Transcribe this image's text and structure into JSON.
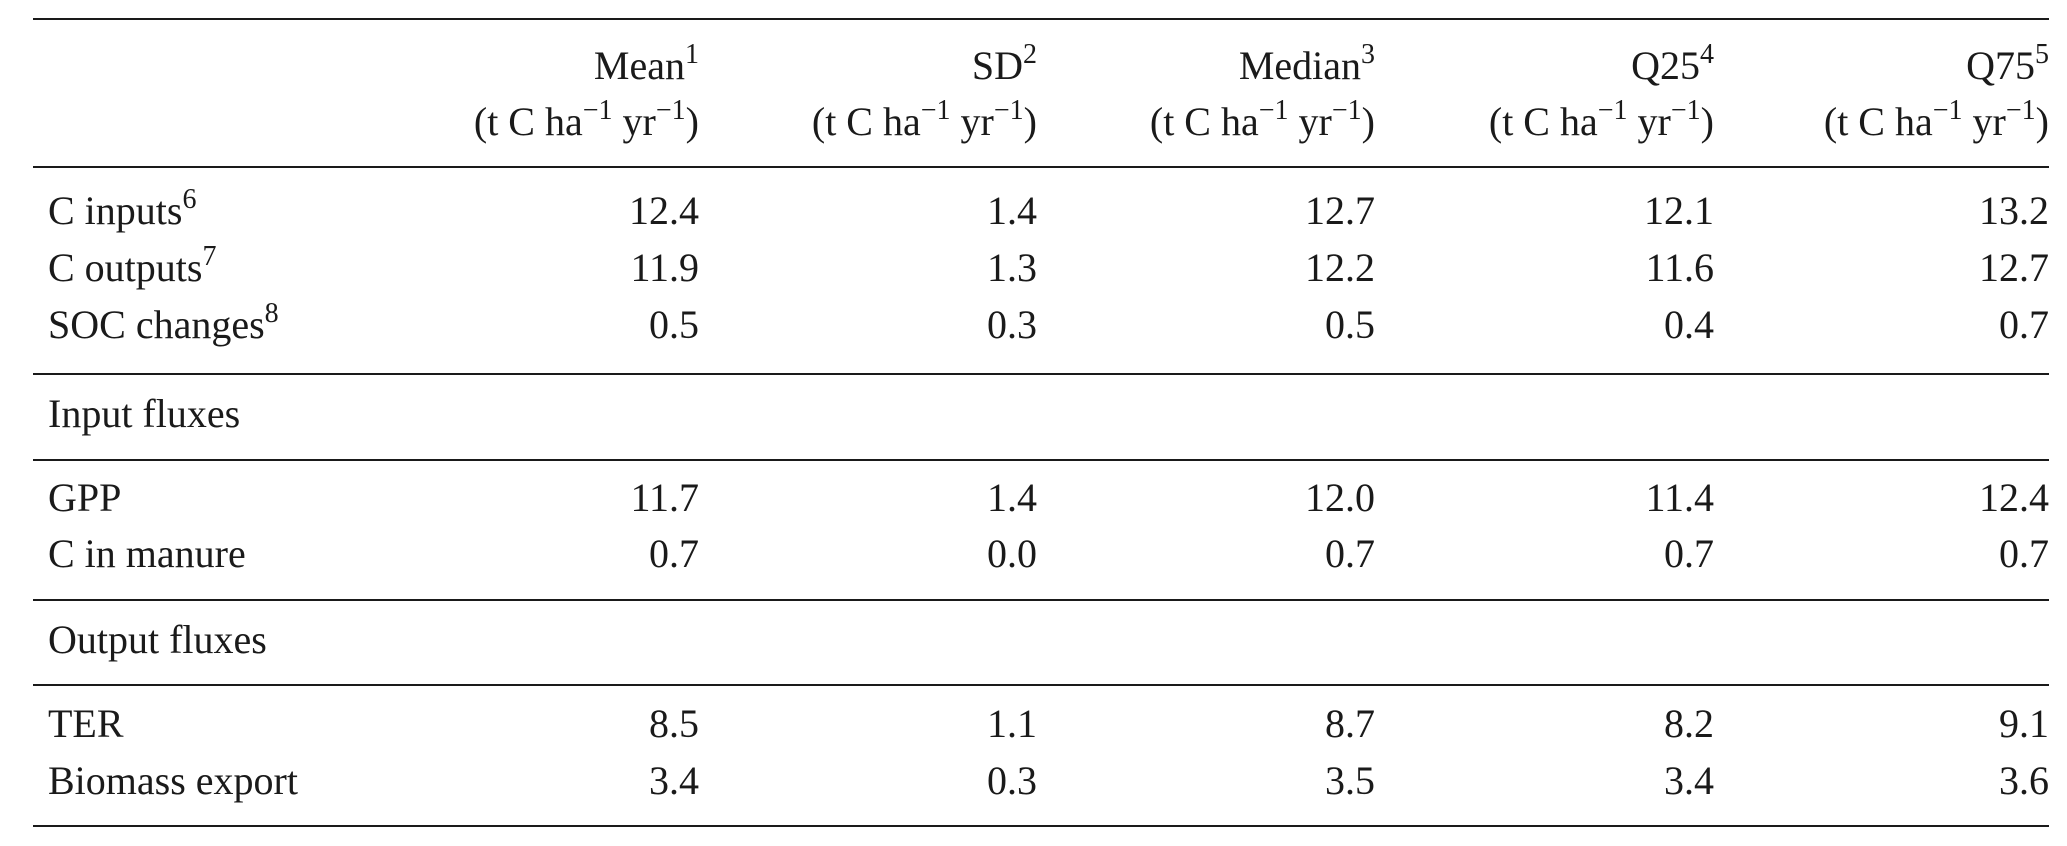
{
  "header": {
    "columns": [
      {
        "label": "Mean",
        "note": "1",
        "unit_pre": "(t C ha",
        "unit_exp1": "−1",
        "unit_mid": " yr",
        "unit_exp2": "−1",
        "unit_post": ")"
      },
      {
        "label": "SD",
        "note": "2",
        "unit_pre": "(t C ha",
        "unit_exp1": "−1",
        "unit_mid": " yr",
        "unit_exp2": "−1",
        "unit_post": ")"
      },
      {
        "label": "Median",
        "note": "3",
        "unit_pre": "(t C ha",
        "unit_exp1": "−1",
        "unit_mid": " yr",
        "unit_exp2": "−1",
        "unit_post": ")"
      },
      {
        "label": "Q25",
        "note": "4",
        "unit_pre": "(t C ha",
        "unit_exp1": "−1",
        "unit_mid": " yr",
        "unit_exp2": "−1",
        "unit_post": ")"
      },
      {
        "label": "Q75",
        "note": "5",
        "unit_pre": "(t C ha",
        "unit_exp1": "−1",
        "unit_mid": " yr",
        "unit_exp2": "−1",
        "unit_post": ")"
      }
    ]
  },
  "summary_rows": [
    {
      "label": "C inputs",
      "note": "6",
      "values": [
        "12.4",
        "1.4",
        "12.7",
        "12.1",
        "13.2"
      ]
    },
    {
      "label": "C outputs",
      "note": "7",
      "values": [
        "11.9",
        "1.3",
        "12.2",
        "11.6",
        "12.7"
      ]
    },
    {
      "label": "SOC changes",
      "note": "8",
      "values": [
        "0.5",
        "0.3",
        "0.5",
        "0.4",
        "0.7"
      ]
    }
  ],
  "input_section": {
    "title": "Input fluxes",
    "rows": [
      {
        "label": "GPP",
        "values": [
          "11.7",
          "1.4",
          "12.0",
          "11.4",
          "12.4"
        ]
      },
      {
        "label": "C in manure",
        "values": [
          "0.7",
          "0.0",
          "0.7",
          "0.7",
          "0.7"
        ]
      }
    ]
  },
  "output_section": {
    "title": "Output fluxes",
    "rows": [
      {
        "label": "TER",
        "values": [
          "8.5",
          "1.1",
          "8.7",
          "8.2",
          "9.1"
        ]
      },
      {
        "label": "Biomass export",
        "values": [
          "3.4",
          "0.3",
          "3.5",
          "3.4",
          "3.6"
        ]
      }
    ]
  }
}
